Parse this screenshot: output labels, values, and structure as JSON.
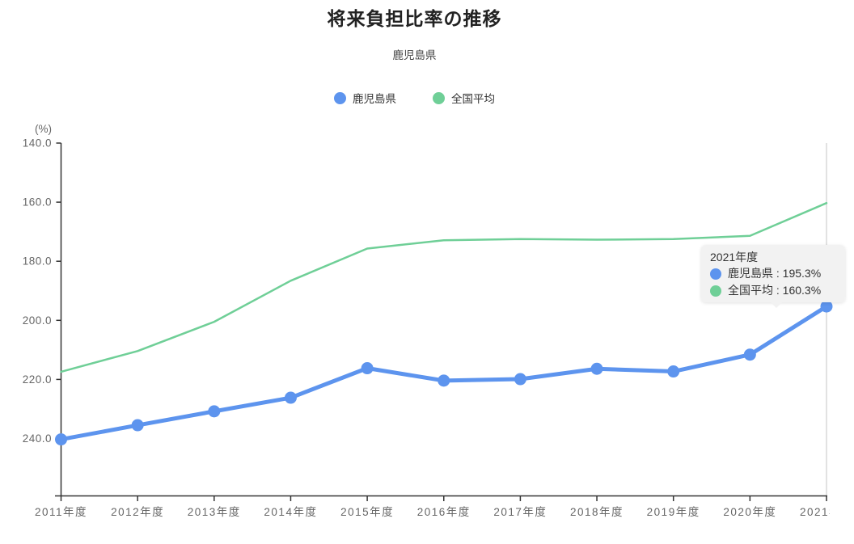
{
  "page": {
    "title": "将来負担比率の推移",
    "subtitle": "鹿児島県"
  },
  "legend": {
    "items": [
      {
        "label": "鹿児島県",
        "color": "#5d94ee"
      },
      {
        "label": "全国平均",
        "color": "#6fcf97"
      }
    ]
  },
  "tooltip": {
    "title": "2021年度",
    "rows": [
      {
        "label": "鹿児島県",
        "value": "195.3%",
        "text": "鹿児島県 : 195.3%",
        "color": "#5d94ee"
      },
      {
        "label": "全国平均",
        "value": "160.3%",
        "text": "全国平均 : 160.3%",
        "color": "#6fcf97"
      }
    ]
  },
  "chart_data": {
    "type": "line",
    "title": "将来負担比率の推移",
    "subtitle": "鹿児島県",
    "unit_label": "(%)",
    "categories": [
      "2011年度",
      "2012年度",
      "2013年度",
      "2014年度",
      "2015年度",
      "2016年度",
      "2017年度",
      "2018年度",
      "2019年度",
      "2020年度",
      "2021年度"
    ],
    "series": [
      {
        "name": "鹿児島県",
        "color": "#5d94ee",
        "line_width": 5,
        "point_markers": true,
        "point_radius": 7.5,
        "values": [
          240.3,
          235.5,
          230.8,
          226.2,
          216.2,
          220.4,
          219.9,
          216.4,
          217.3,
          211.6,
          195.3
        ]
      },
      {
        "name": "全国平均",
        "color": "#6fcf97",
        "line_width": 2.5,
        "point_markers": false,
        "point_radius": 0,
        "values": [
          217.4,
          210.4,
          200.5,
          186.6,
          175.7,
          172.9,
          172.5,
          172.7,
          172.5,
          171.4,
          160.3
        ]
      }
    ],
    "y_axis": {
      "unit_label": "(%)",
      "inverted": true,
      "tick_labels": [
        "140.0",
        "160.0",
        "180.0",
        "200.0",
        "220.0",
        "240.0"
      ],
      "tick_values": [
        140,
        160,
        180,
        200,
        220,
        240
      ],
      "units_per_gap": 20
    },
    "legend_position": "top",
    "grid": false,
    "highlight": {
      "category": "2021年度",
      "index": 10,
      "values": {
        "鹿児島県": "195.3%",
        "全国平均": "160.3%"
      }
    },
    "axis_colors": {
      "axis_line": "#333333",
      "tick_label": "#666666",
      "crosshair": "#cfcfcf"
    }
  }
}
